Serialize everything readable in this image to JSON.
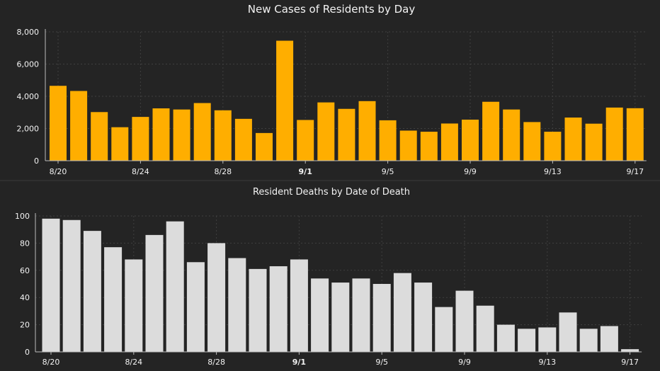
{
  "chart_data": [
    {
      "type": "bar",
      "title": "New Cases of Residents by Day",
      "color": "#FFAE00",
      "categories": [
        "8/20",
        "8/21",
        "8/22",
        "8/23",
        "8/24",
        "8/25",
        "8/26",
        "8/27",
        "8/28",
        "8/29",
        "8/30",
        "8/31",
        "9/1",
        "9/2",
        "9/3",
        "9/4",
        "9/5",
        "9/6",
        "9/7",
        "9/8",
        "9/9",
        "9/10",
        "9/11",
        "9/12",
        "9/13",
        "9/14",
        "9/15",
        "9/16",
        "9/17"
      ],
      "values": [
        4650,
        4330,
        3020,
        2080,
        2720,
        3250,
        3180,
        3580,
        3130,
        2600,
        1720,
        7450,
        2530,
        3620,
        3220,
        3700,
        2510,
        1870,
        1800,
        2310,
        2550,
        3660,
        3180,
        2400,
        1800,
        2680,
        2300,
        3300,
        3260
      ],
      "x_ticks": [
        "8/20",
        "8/24",
        "8/28",
        "9/1",
        "9/5",
        "9/9",
        "9/13",
        "9/17"
      ],
      "bold_ticks": [
        "9/1"
      ],
      "y_ticks": [
        "0",
        "2,000",
        "4,000",
        "6,000",
        "8,000"
      ],
      "ylim": [
        0,
        8000
      ],
      "xlabel": "",
      "ylabel": "",
      "grid": true
    },
    {
      "type": "bar",
      "title": "Resident Deaths by Date of Death",
      "color": "#DCDCDC",
      "categories": [
        "8/20",
        "8/21",
        "8/22",
        "8/23",
        "8/24",
        "8/25",
        "8/26",
        "8/27",
        "8/28",
        "8/29",
        "8/30",
        "8/31",
        "9/1",
        "9/2",
        "9/3",
        "9/4",
        "9/5",
        "9/6",
        "9/7",
        "9/8",
        "9/9",
        "9/10",
        "9/11",
        "9/12",
        "9/13",
        "9/14",
        "9/15",
        "9/16",
        "9/17"
      ],
      "values": [
        98,
        97,
        89,
        77,
        68,
        86,
        96,
        66,
        80,
        69,
        61,
        63,
        68,
        54,
        51,
        54,
        50,
        58,
        51,
        33,
        45,
        34,
        20,
        17,
        18,
        29,
        17,
        19,
        2
      ],
      "x_ticks": [
        "8/20",
        "8/24",
        "8/28",
        "9/1",
        "9/5",
        "9/9",
        "9/13",
        "9/17"
      ],
      "bold_ticks": [
        "9/1"
      ],
      "y_ticks": [
        "0",
        "20",
        "40",
        "60",
        "80",
        "100"
      ],
      "ylim": [
        0,
        100
      ],
      "xlabel": "",
      "ylabel": "",
      "grid": true
    }
  ]
}
